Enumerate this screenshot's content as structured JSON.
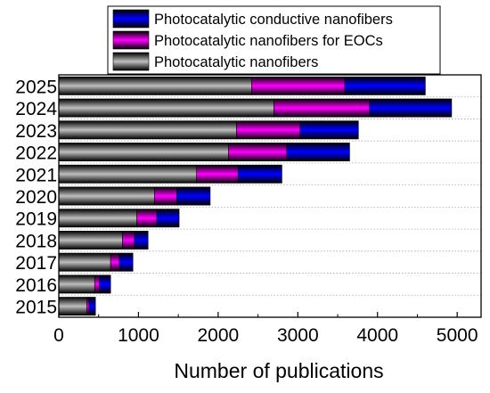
{
  "chart_data": {
    "type": "bar",
    "orientation": "horizontal",
    "stacked": true,
    "categories": [
      "2025",
      "2024",
      "2023",
      "2022",
      "2021",
      "2020",
      "2019",
      "2018",
      "2017",
      "2016",
      "2015"
    ],
    "series": [
      {
        "name": "Photocatalytic nanofibers",
        "color": "#bfbfbf",
        "values": [
          2420,
          2700,
          2230,
          2130,
          1730,
          1200,
          980,
          800,
          650,
          450,
          350
        ]
      },
      {
        "name": "Photocatalytic nanofibers for EOCs",
        "color": "#ff00ff",
        "values": [
          1170,
          1200,
          800,
          730,
          520,
          280,
          250,
          150,
          110,
          60,
          30
        ]
      },
      {
        "name": "Photocatalytic conductive nanofibers",
        "color": "#0000ff",
        "values": [
          1010,
          1030,
          730,
          790,
          550,
          420,
          280,
          170,
          170,
          140,
          80
        ]
      }
    ],
    "xlabel": "Number of publications",
    "ylabel": "",
    "xlim": [
      0,
      5300
    ],
    "xticks": [
      0,
      1000,
      2000,
      3000,
      4000,
      5000
    ],
    "grid": "horizontal dotted",
    "legend": "top-right"
  }
}
